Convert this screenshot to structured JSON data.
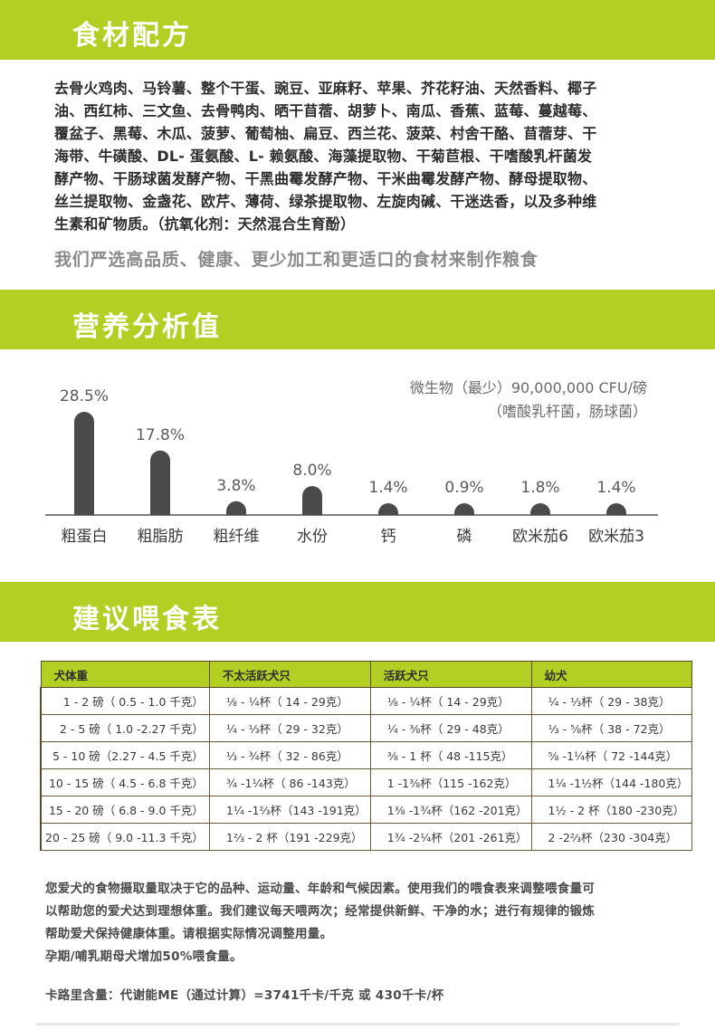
{
  "sections": {
    "ingredients_title": "食材配方",
    "nutrition_title": "营养分析值",
    "feeding_title": "建议喂食表"
  },
  "ingredients": {
    "lines": [
      "去骨火鸡肉、马铃薯、整个干蛋、豌豆、亚麻籽、苹果、芥花籽油、天然香料、椰子",
      "油、西红柿、三文鱼、去骨鸭肉、晒干苜蓿、胡萝卜、南瓜、香蕉、蓝莓、蔓越莓、",
      "覆盆子、黑莓、木瓜、菠萝、葡萄柚、扁豆、西兰花、菠菜、村舍干酪、苜蓿芽、干",
      "海带、牛磺酸、DL- 蛋氨酸、L- 赖氨酸、海藻提取物、干菊苣根、干嗜酸乳杆菌发",
      "酵产物、干肠球菌发酵产物、干黑曲霉发酵产物、干米曲霉发酵产物、酵母提取物、",
      "丝兰提取物、金盏花、欧芹、薄荷、绿茶提取物、左旋肉碱、干迷迭香，以及多种维",
      "生素和矿物质。（抗氧化剂：天然混合生育酚）"
    ],
    "tagline": "我们严选高品质、健康、更少加工和更适口的食材来制作粮食"
  },
  "chart_data": {
    "type": "bar",
    "categories": [
      "粗蛋白",
      "粗脂肪",
      "粗纤维",
      "水份",
      "钙",
      "磷",
      "欧米茄6",
      "欧米茄3"
    ],
    "values": [
      28.5,
      17.8,
      3.8,
      8.0,
      1.4,
      0.9,
      1.8,
      1.4
    ],
    "value_labels": [
      "28.5%",
      "17.8%",
      "3.8%",
      "8.0%",
      "1.4%",
      "0.9%",
      "1.8%",
      "1.4%"
    ],
    "ylim": [
      0,
      30
    ],
    "grid": false,
    "bar_color": "#4a4a4a",
    "annotation_line1": "微生物（最少）90,000,000 CFU/磅",
    "annotation_line2": "（嗜酸乳杆菌，肠球菌）"
  },
  "feeding_table": {
    "headers": [
      "犬体重",
      "不太活跃犬只",
      "活跃犬只",
      "幼犬"
    ],
    "rows": [
      [
        "1 - 2 磅（ 0.5 - 1.0 千克）",
        "⅛ - ¼杯（ 14 - 29克）",
        "⅛ - ¼杯（ 14 - 29克）",
        "¼ - ⅓杯（ 29 - 38克）"
      ],
      [
        "2 - 5 磅（ 1.0 -2.27 千克）",
        "¼ - ⅓杯（ 29 - 32克）",
        "¼ - ⅜杯（ 29 - 48克）",
        "⅓ - ⅝杯（ 38 - 72克）"
      ],
      [
        "5 - 10 磅（2.27 - 4.5 千克）",
        "⅓ - ¾杯（ 32 - 86克）",
        "⅜ - 1 杯（ 48 -115克）",
        "⅝ -1¼杯（ 72 -144克）"
      ],
      [
        "10 - 15 磅（ 4.5 - 6.8 千克）",
        "¾ -1¼杯（ 86 -143克）",
        "1 -1⅜杯（115 -162克）",
        "1¼ -1½杯（144 -180克）"
      ],
      [
        "15 - 20 磅（ 6.8 - 9.0 千克）",
        "1¼ -1⅔杯（143 -191克）",
        "1⅜ -1¾杯（162 -201克）",
        "1½ - 2 杯（180 -230克）"
      ],
      [
        "20 - 25 磅（ 9.0 -11.3 千克）",
        "1⅔ - 2 杯（191 -229克）",
        "1¾ -2¼杯（201 -261克）",
        "2 -2⅔杯（230 -304克）"
      ]
    ]
  },
  "notes": {
    "lines": [
      "您爱犬的食物摄取量取决于它的品种、运动量、年龄和气候因素。使用我们的喂食表来调整喂食量可",
      "以帮助您的爱犬达到理想体重。我们建议每天喂两次；经常提供新鲜、干净的水；进行有规律的锻炼",
      "帮助爱犬保持健康体重。请根据实际情况调整用量。",
      "孕期/哺乳期母犬增加50%喂食量。"
    ],
    "kcal": "卡路里含量：代谢能ME（通过计算）=3741千卡/千克 或 430千卡/杯"
  },
  "colors": {
    "banner": "#b4cf24",
    "bar": "#4a4a4a",
    "table_header": "#b4cf24"
  }
}
